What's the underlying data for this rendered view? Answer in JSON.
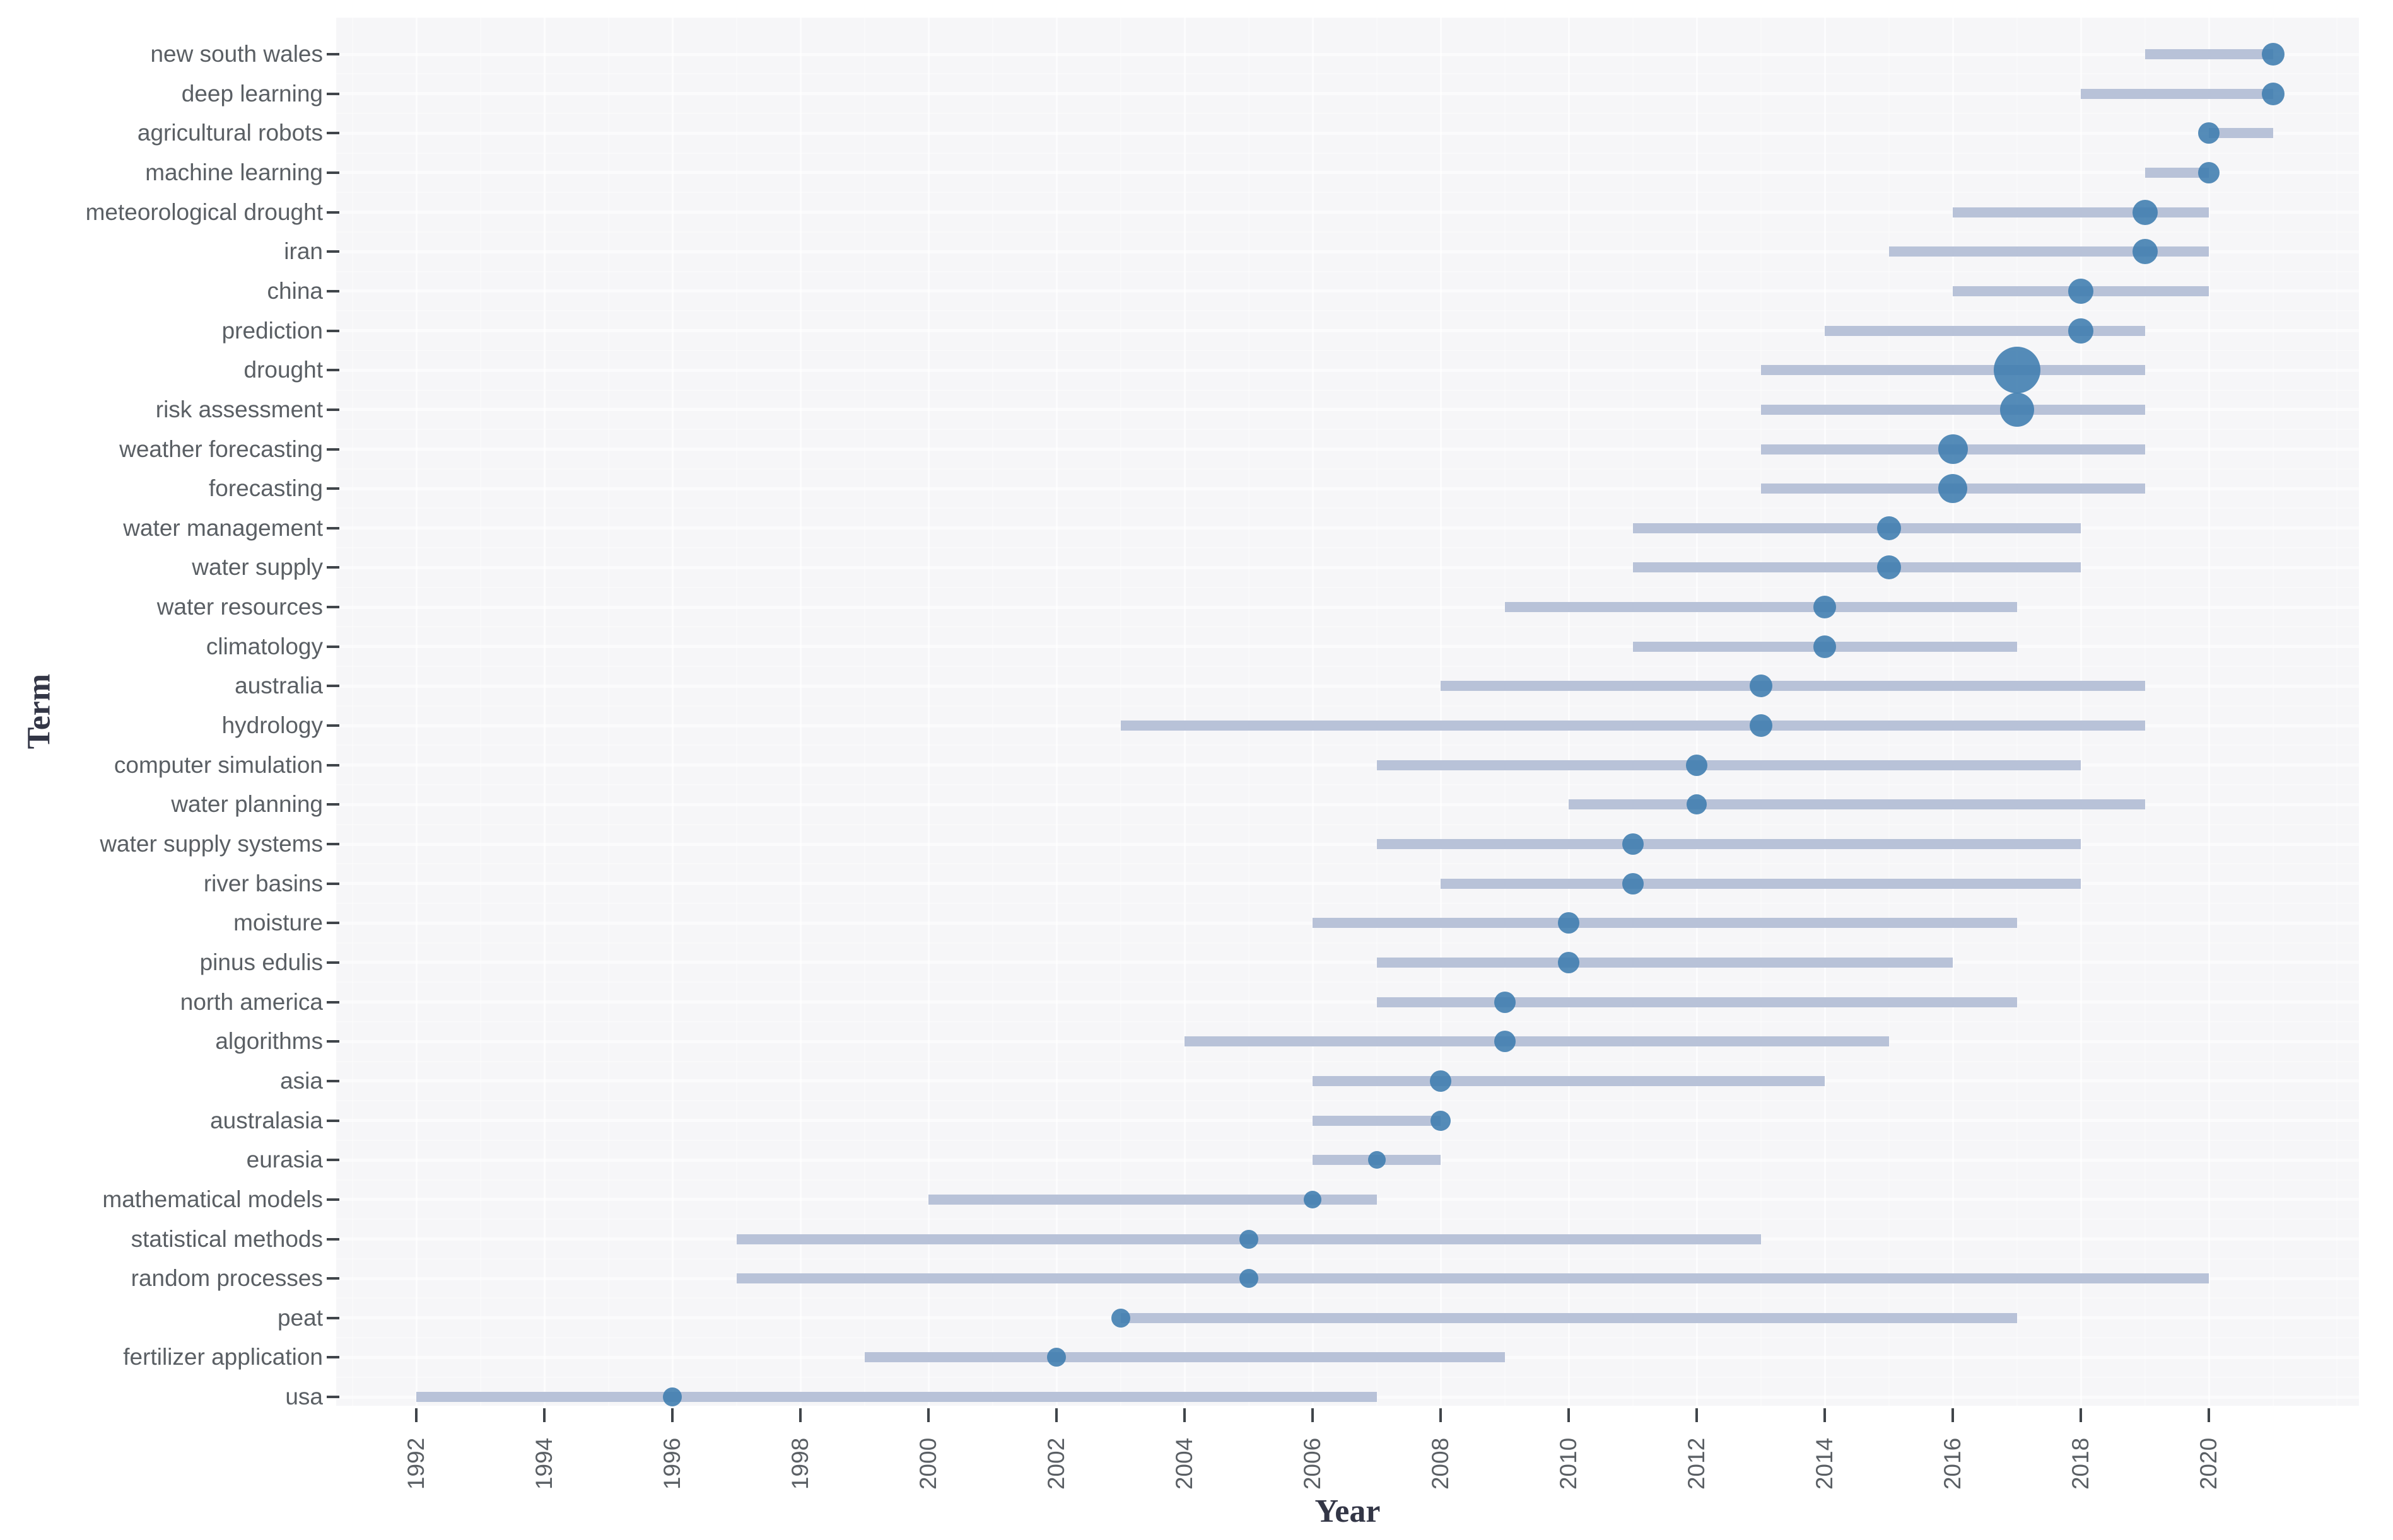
{
  "chart_data": {
    "type": "scatter",
    "subtype": "range-bubble-timeline",
    "title": "",
    "xlabel": "Year",
    "ylabel": "Term",
    "x_ticks": [
      1992,
      1994,
      1996,
      1998,
      2000,
      2002,
      2004,
      2006,
      2008,
      2010,
      2012,
      2014,
      2016,
      2018,
      2020
    ],
    "xlim": [
      1990.8,
      2022.3
    ],
    "legend": "none",
    "grid": "on",
    "terms": [
      {
        "label": "new south wales",
        "start": 2019,
        "end": 2021,
        "peak": 2021,
        "size": 36
      },
      {
        "label": "deep learning",
        "start": 2018,
        "end": 2021,
        "peak": 2021,
        "size": 36
      },
      {
        "label": "agricultural robots",
        "start": 2020,
        "end": 2021,
        "peak": 2020,
        "size": 34
      },
      {
        "label": "machine learning",
        "start": 2019,
        "end": 2020,
        "peak": 2020,
        "size": 34
      },
      {
        "label": "meteorological drought",
        "start": 2016,
        "end": 2020,
        "peak": 2019,
        "size": 40
      },
      {
        "label": "iran",
        "start": 2015,
        "end": 2020,
        "peak": 2019,
        "size": 40
      },
      {
        "label": "china",
        "start": 2016,
        "end": 2020,
        "peak": 2018,
        "size": 40
      },
      {
        "label": "prediction",
        "start": 2014,
        "end": 2019,
        "peak": 2018,
        "size": 40
      },
      {
        "label": "drought",
        "start": 2013,
        "end": 2019,
        "peak": 2017,
        "size": 74
      },
      {
        "label": "risk assessment",
        "start": 2013,
        "end": 2019,
        "peak": 2017,
        "size": 54
      },
      {
        "label": "weather forecasting",
        "start": 2013,
        "end": 2019,
        "peak": 2016,
        "size": 47
      },
      {
        "label": "forecasting",
        "start": 2013,
        "end": 2019,
        "peak": 2016,
        "size": 46
      },
      {
        "label": "water management",
        "start": 2011,
        "end": 2018,
        "peak": 2015,
        "size": 38
      },
      {
        "label": "water supply",
        "start": 2011,
        "end": 2018,
        "peak": 2015,
        "size": 38
      },
      {
        "label": "water resources",
        "start": 2009,
        "end": 2017,
        "peak": 2014,
        "size": 36
      },
      {
        "label": "climatology",
        "start": 2011,
        "end": 2017,
        "peak": 2014,
        "size": 36
      },
      {
        "label": "australia",
        "start": 2008,
        "end": 2019,
        "peak": 2013,
        "size": 36
      },
      {
        "label": "hydrology",
        "start": 2003,
        "end": 2019,
        "peak": 2013,
        "size": 36
      },
      {
        "label": "computer simulation",
        "start": 2007,
        "end": 2018,
        "peak": 2012,
        "size": 34
      },
      {
        "label": "water planning",
        "start": 2010,
        "end": 2019,
        "peak": 2012,
        "size": 32
      },
      {
        "label": "water supply systems",
        "start": 2007,
        "end": 2018,
        "peak": 2011,
        "size": 34
      },
      {
        "label": "river basins",
        "start": 2008,
        "end": 2018,
        "peak": 2011,
        "size": 34
      },
      {
        "label": "moisture",
        "start": 2006,
        "end": 2017,
        "peak": 2010,
        "size": 34
      },
      {
        "label": "pinus edulis",
        "start": 2007,
        "end": 2016,
        "peak": 2010,
        "size": 34
      },
      {
        "label": "north america",
        "start": 2007,
        "end": 2017,
        "peak": 2009,
        "size": 34
      },
      {
        "label": "algorithms",
        "start": 2004,
        "end": 2015,
        "peak": 2009,
        "size": 34
      },
      {
        "label": "asia",
        "start": 2006,
        "end": 2014,
        "peak": 2008,
        "size": 34
      },
      {
        "label": "australasia",
        "start": 2006,
        "end": 2008,
        "peak": 2008,
        "size": 32
      },
      {
        "label": "eurasia",
        "start": 2006,
        "end": 2008,
        "peak": 2007,
        "size": 28
      },
      {
        "label": "mathematical models",
        "start": 2000,
        "end": 2007,
        "peak": 2006,
        "size": 28
      },
      {
        "label": "statistical methods",
        "start": 1997,
        "end": 2013,
        "peak": 2005,
        "size": 30
      },
      {
        "label": "random processes",
        "start": 1997,
        "end": 2020,
        "peak": 2005,
        "size": 30
      },
      {
        "label": "peat",
        "start": 2003,
        "end": 2017,
        "peak": 2003,
        "size": 30
      },
      {
        "label": "fertilizer application",
        "start": 1999,
        "end": 2009,
        "peak": 2002,
        "size": 30
      },
      {
        "label": "usa",
        "start": 1992,
        "end": 2007,
        "peak": 1996,
        "size": 30
      }
    ]
  },
  "colors": {
    "dot": "#3d7cae",
    "bar": "#b8c2d8",
    "plot_bg": "#f6f6f8",
    "grid": "#ffffff",
    "tick": "#40454a",
    "label": "#5a5f64",
    "axis_title": "#333646"
  }
}
